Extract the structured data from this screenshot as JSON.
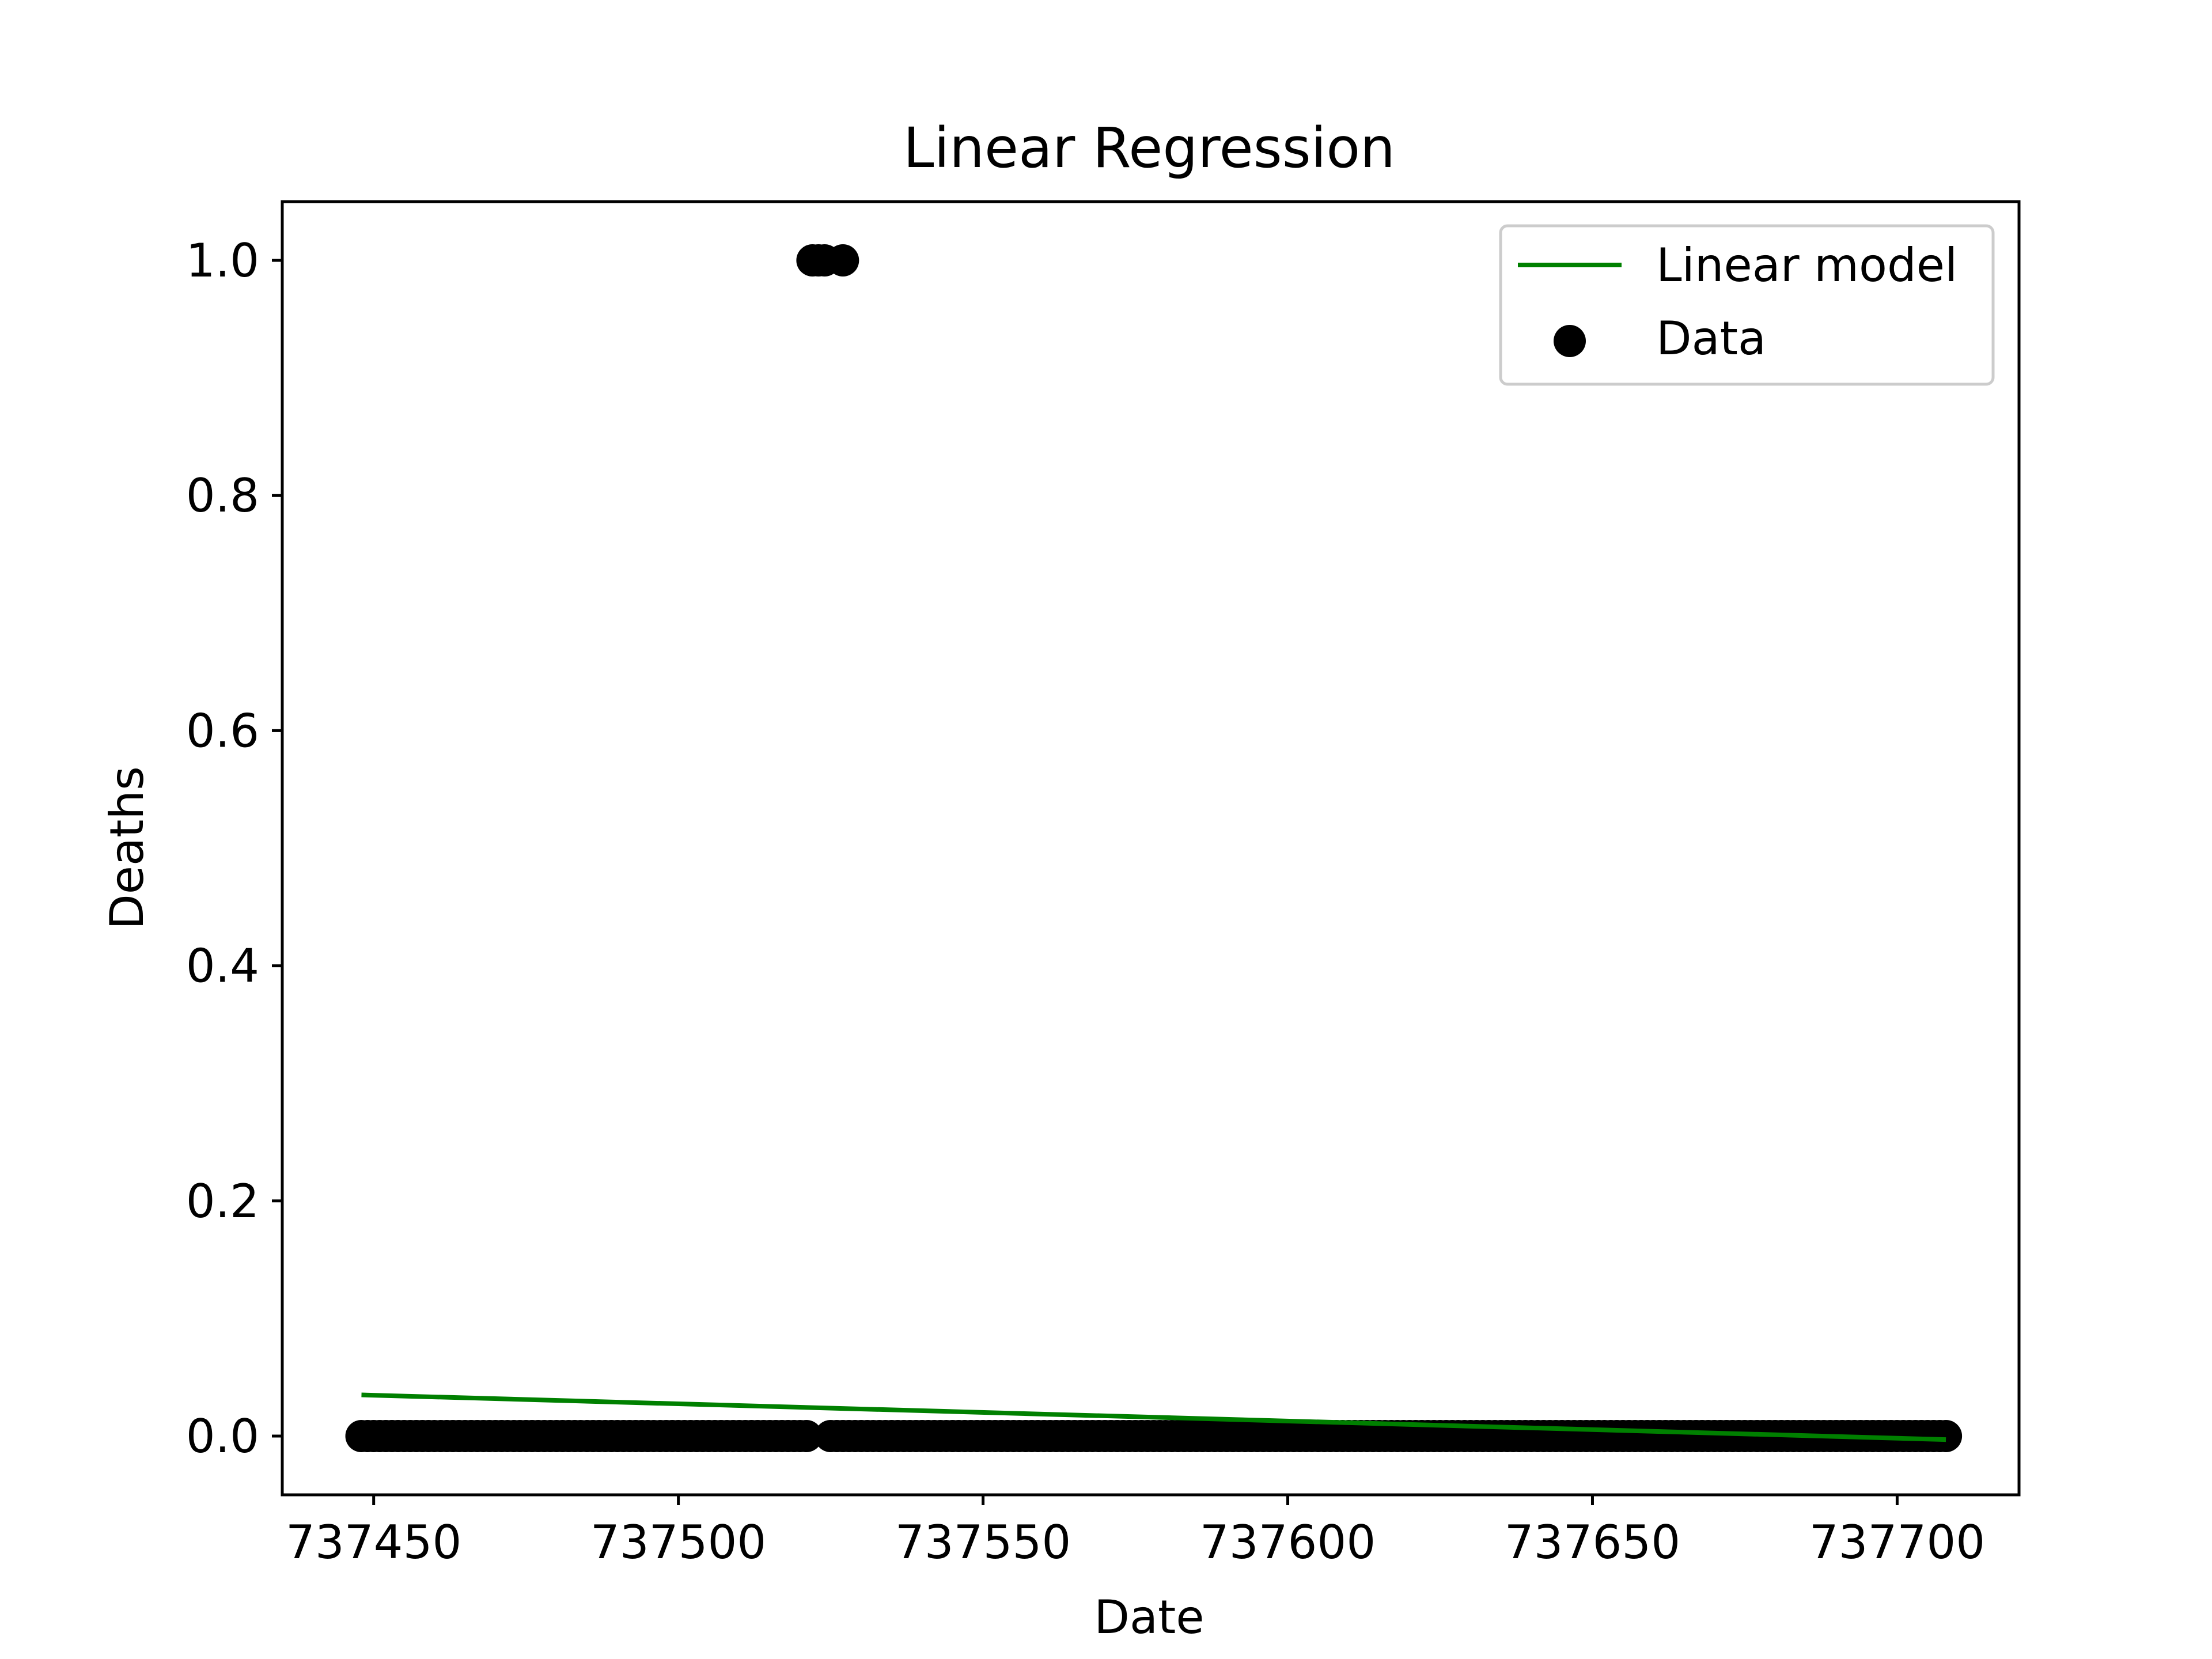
{
  "chart_data": {
    "type": "scatter",
    "title": "Linear Regression",
    "xlabel": "Date",
    "ylabel": "Deaths",
    "xlim": [
      737435,
      737720
    ],
    "ylim": [
      -0.05,
      1.05
    ],
    "xticks": [
      737450,
      737500,
      737550,
      737600,
      737650,
      737700
    ],
    "xtick_labels": [
      "737450",
      "737500",
      "737550",
      "737600",
      "737650",
      "737700"
    ],
    "yticks": [
      0.0,
      0.2,
      0.4,
      0.6,
      0.8,
      1.0
    ],
    "ytick_labels": [
      "0.0",
      "0.2",
      "0.4",
      "0.6",
      "0.8",
      "1.0"
    ],
    "grid": false,
    "legend_position": "top-right",
    "series": [
      {
        "name": "Linear model",
        "kind": "line",
        "color": "#008000",
        "x": [
          737448,
          737708
        ],
        "y": [
          0.035,
          -0.003
        ]
      },
      {
        "name": "Data",
        "kind": "scatter",
        "color": "#000000",
        "zero_runs": [
          [
            737448,
            737521
          ],
          [
            737525,
            737708
          ]
        ],
        "ones": [
          737522,
          737523,
          737524,
          737527
        ]
      }
    ]
  }
}
